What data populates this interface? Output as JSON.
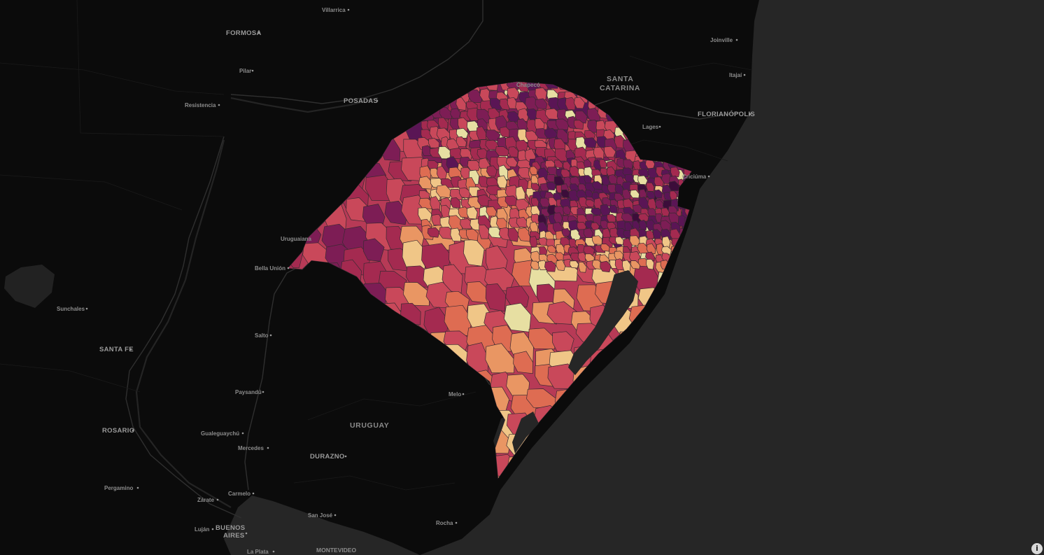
{
  "map": {
    "basemap_style": "dark",
    "colors": {
      "land": "#0b0b0b",
      "ocean": "#262626",
      "water": "#2c2c2c",
      "border": "#333333",
      "river": "#222222",
      "region_stroke": "#3a2a32",
      "choropleth_palette": [
        "#3c0d3a",
        "#5a1555",
        "#7d1d55",
        "#a42a50",
        "#c9485a",
        "#de6c52",
        "#e99663",
        "#f0c687",
        "#e7dfa2"
      ]
    },
    "choropleth_region": "Rio Grande do Sul",
    "labels": {
      "villarrica": "Villarrica",
      "formosa": "FORMOSA",
      "pilar": "Pilar",
      "resistencia": "Resistencia",
      "posadas": "POSADAS",
      "chapeco": "Chapecó",
      "santa_catarina_1": "SANTA",
      "santa_catarina_2": "CATARINA",
      "joinville": "Joinville",
      "itajai": "Itajaí",
      "florianopolis": "FLORIANÓPOLIS",
      "lages": "Lages",
      "criciuma": "Criciúma",
      "uruguaiana": "Uruguaiana",
      "bella_union": "Bella Unión",
      "sunchales": "Sunchales",
      "santa_fe": "SANTA FE",
      "salto": "Salto",
      "paysandu": "Paysandú",
      "melo": "Melo",
      "uruguay": "URUGUAY",
      "rosario": "ROSARIO",
      "gualeguaychu": "Gualeguaychú",
      "mercedes": "Mercedes",
      "durazno": "DURAZNO",
      "pergamino": "Pergamino",
      "carmelo": "Carmelo",
      "zarate": "Zárate",
      "lujan": "Luján",
      "buenos_aires_1": "BUENOS",
      "buenos_aires_2": "AIRES",
      "san_jose": "San José",
      "rocha": "Rocha",
      "montevideo": "MONTEVIDEO",
      "la_plata": "La Plata"
    },
    "info_button": "i"
  }
}
